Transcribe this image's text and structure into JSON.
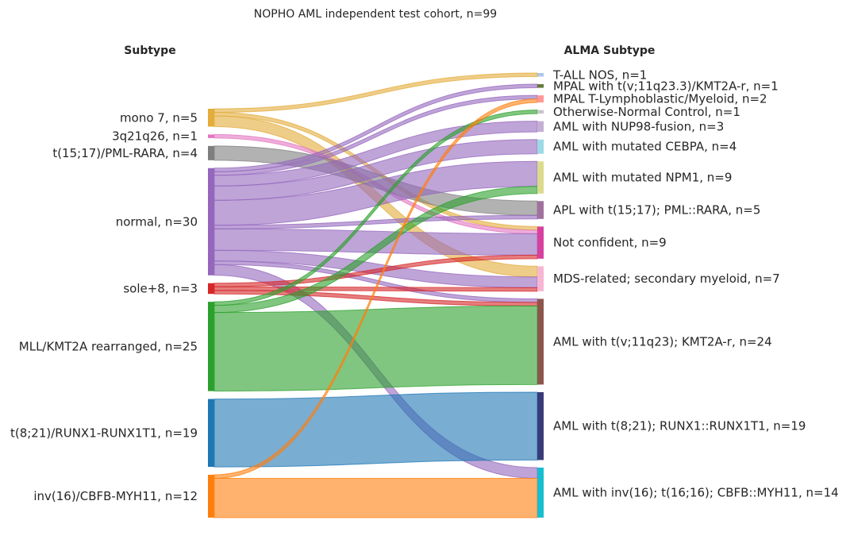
{
  "chart_data": {
    "type": "sankey",
    "title": "NOPHO AML independent test cohort, n=99",
    "left_header": "Subtype",
    "right_header": "ALMA Subtype",
    "total": 99,
    "left_nodes": [
      {
        "id": "mono7",
        "label": "mono 7, n=5",
        "count": 5,
        "color": "#e3ac3b"
      },
      {
        "id": "3q21q26",
        "label": "3q21q26, n=1",
        "count": 1,
        "color": "#e377c2"
      },
      {
        "id": "t1517",
        "label": "t(15;17)/PML-RARA, n=4",
        "count": 4,
        "color": "#7f7f7f"
      },
      {
        "id": "normal",
        "label": "normal, n=30",
        "count": 30,
        "color": "#9467bd"
      },
      {
        "id": "sole8",
        "label": "sole+8, n=3",
        "count": 3,
        "color": "#d62728"
      },
      {
        "id": "mll",
        "label": "MLL/KMT2A rearranged, n=25",
        "count": 25,
        "color": "#2ca02c"
      },
      {
        "id": "t821",
        "label": "t(8;21)/RUNX1-RUNX1T1, n=19",
        "count": 19,
        "color": "#1f77b4"
      },
      {
        "id": "inv16",
        "label": "inv(16)/CBFB-MYH11, n=12",
        "count": 12,
        "color": "#ff7f0e"
      }
    ],
    "right_nodes": [
      {
        "id": "tall",
        "label": "T-ALL NOS, n=1",
        "count": 1,
        "color": "#aec7e8"
      },
      {
        "id": "mpalkmt2a",
        "label": "MPAL with t(v;11q23.3)/KMT2A-r, n=1",
        "count": 1,
        "color": "#637939"
      },
      {
        "id": "mpaltlymph",
        "label": "MPAL T-Lymphoblastic/Myeloid, n=2",
        "count": 2,
        "color": "#ff9896"
      },
      {
        "id": "onc",
        "label": "Otherwise-Normal Control, n=1",
        "count": 1,
        "color": "#c7c7c7"
      },
      {
        "id": "nup98",
        "label": "AML with NUP98-fusion, n=3",
        "count": 3,
        "color": "#c5b0d5"
      },
      {
        "id": "cebpa",
        "label": "AML with mutated CEBPA, n=4",
        "count": 4,
        "color": "#9edae5"
      },
      {
        "id": "npm1",
        "label": "AML with mutated NPM1, n=9",
        "count": 9,
        "color": "#dbdb8d"
      },
      {
        "id": "apl",
        "label": "APL with t(15;17); PML::RARA, n=5",
        "count": 5,
        "color": "#a0719c"
      },
      {
        "id": "notconf",
        "label": "Not confident, n=9",
        "count": 9,
        "color": "#d6419e"
      },
      {
        "id": "mds",
        "label": "MDS-related; secondary myeloid, n=7",
        "count": 7,
        "color": "#f7b6d2"
      },
      {
        "id": "kmt2a",
        "label": "AML with t(v;11q23); KMT2A-r, n=24",
        "count": 24,
        "color": "#8c564b"
      },
      {
        "id": "runx1",
        "label": "AML with t(8;21); RUNX1::RUNX1T1, n=19",
        "count": 19,
        "color": "#393b79"
      },
      {
        "id": "cbfb",
        "label": "AML with inv(16); t(16;16); CBFB::MYH11, n=14",
        "count": 14,
        "color": "#17becf"
      }
    ],
    "flows": [
      {
        "source": "mono7",
        "target": "tall",
        "value": 1
      },
      {
        "source": "mono7",
        "target": "notconf",
        "value": 1
      },
      {
        "source": "mono7",
        "target": "mds",
        "value": 3
      },
      {
        "source": "3q21q26",
        "target": "notconf",
        "value": 1
      },
      {
        "source": "t1517",
        "target": "apl",
        "value": 4
      },
      {
        "source": "normal",
        "target": "mpalkmt2a",
        "value": 1
      },
      {
        "source": "normal",
        "target": "mpaltlymph",
        "value": 1
      },
      {
        "source": "normal",
        "target": "nup98",
        "value": 3
      },
      {
        "source": "normal",
        "target": "cebpa",
        "value": 4
      },
      {
        "source": "normal",
        "target": "npm1",
        "value": 7
      },
      {
        "source": "normal",
        "target": "apl",
        "value": 1
      },
      {
        "source": "normal",
        "target": "notconf",
        "value": 6
      },
      {
        "source": "normal",
        "target": "mds",
        "value": 3
      },
      {
        "source": "normal",
        "target": "kmt2a",
        "value": 1
      },
      {
        "source": "normal",
        "target": "cbfb",
        "value": 3
      },
      {
        "source": "sole8",
        "target": "notconf",
        "value": 1
      },
      {
        "source": "sole8",
        "target": "mds",
        "value": 1
      },
      {
        "source": "sole8",
        "target": "kmt2a",
        "value": 1
      },
      {
        "source": "mll",
        "target": "onc",
        "value": 1
      },
      {
        "source": "mll",
        "target": "npm1",
        "value": 2
      },
      {
        "source": "mll",
        "target": "kmt2a",
        "value": 22
      },
      {
        "source": "t821",
        "target": "runx1",
        "value": 19
      },
      {
        "source": "inv16",
        "target": "mpaltlymph",
        "value": 1
      },
      {
        "source": "inv16",
        "target": "cbfb",
        "value": 11
      }
    ]
  }
}
